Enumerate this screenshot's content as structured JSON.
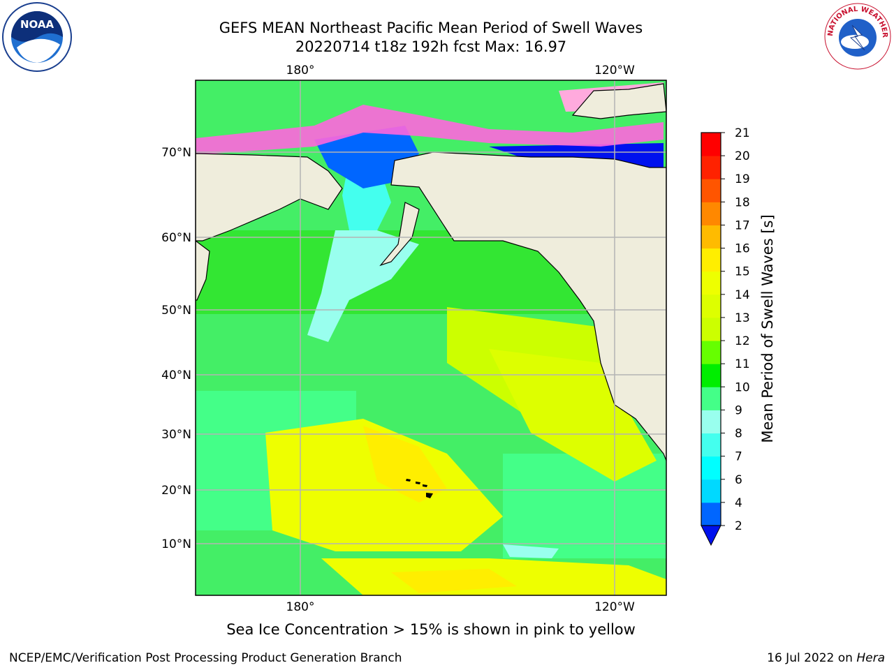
{
  "title_line1": "GEFS MEAN Northeast Pacific Mean Period of Swell Waves",
  "title_line2": "20220714 t18z 192h fcst   Max: 16.97",
  "map": {
    "lon_labels_top": [
      "180°",
      "120°W"
    ],
    "lon_labels_bottom": [
      "180°",
      "120°W"
    ],
    "lat_labels": [
      "70°N",
      "60°N",
      "50°N",
      "40°N",
      "30°N",
      "20°N",
      "10°N"
    ],
    "colors": {
      "land": "#efeddc",
      "gridline": "#b4b4b4",
      "coastline": "#000000"
    }
  },
  "colorbar": {
    "label": "Mean Period of Swell Waves [s]",
    "ticks": [
      "2",
      "4",
      "6",
      "7",
      "8",
      "9",
      "10",
      "11",
      "12",
      "13",
      "14",
      "15",
      "16",
      "17",
      "18",
      "19",
      "20",
      "21"
    ],
    "bin_colors": [
      "#0066ff",
      "#00d9ff",
      "#00ffff",
      "#44ffee",
      "#99ffee",
      "#44ff88",
      "#00ee00",
      "#66ff00",
      "#ccff00",
      "#ddff00",
      "#eeff00",
      "#ffee00",
      "#ffbb00",
      "#ff8800",
      "#ff5500",
      "#ff2200",
      "#ff0000"
    ],
    "under_color": "#0011ee"
  },
  "ice_note": "Sea Ice Concentration > 15% is shown in pink to yellow",
  "footer": {
    "left": "NCEP/EMC/Verification Post Processing Product Generation Branch",
    "right_prefix": "16 Jul 2022 on ",
    "right_host": "Hera"
  },
  "logos": {
    "noaa_text": "NOAA",
    "nws_text": "NATIONAL WEATHER SERVICE"
  }
}
